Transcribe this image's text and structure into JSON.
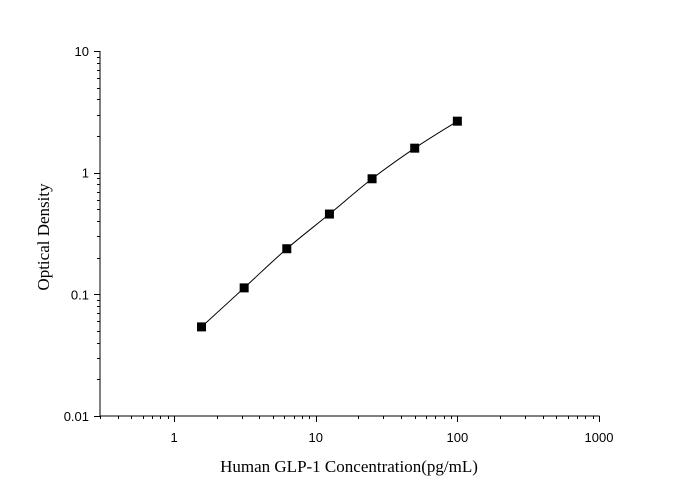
{
  "chart_data": {
    "type": "scatter",
    "xlabel": "Human GLP-1 Concentration(pg/mL)",
    "ylabel": "Optical Density",
    "x_scale": "log",
    "y_scale": "log",
    "xlim": [
      0.3,
      1000
    ],
    "ylim": [
      0.01,
      10
    ],
    "x_ticks": [
      {
        "value": 1,
        "label": "1"
      },
      {
        "value": 10,
        "label": "10"
      },
      {
        "value": 100,
        "label": "100"
      },
      {
        "value": 1000,
        "label": "1000"
      }
    ],
    "y_ticks": [
      {
        "value": 0.01,
        "label": "0.01"
      },
      {
        "value": 0.1,
        "label": "0.1"
      },
      {
        "value": 1,
        "label": "1"
      },
      {
        "value": 10,
        "label": "10"
      }
    ],
    "grid": false,
    "series": [
      {
        "x": [
          1.5625,
          3.125,
          6.25,
          12.5,
          25,
          50,
          100
        ],
        "y": [
          0.054,
          0.113,
          0.237,
          0.457,
          0.891,
          1.59,
          2.65
        ],
        "marker": "square",
        "line": "smooth",
        "color": "#000000"
      }
    ]
  }
}
